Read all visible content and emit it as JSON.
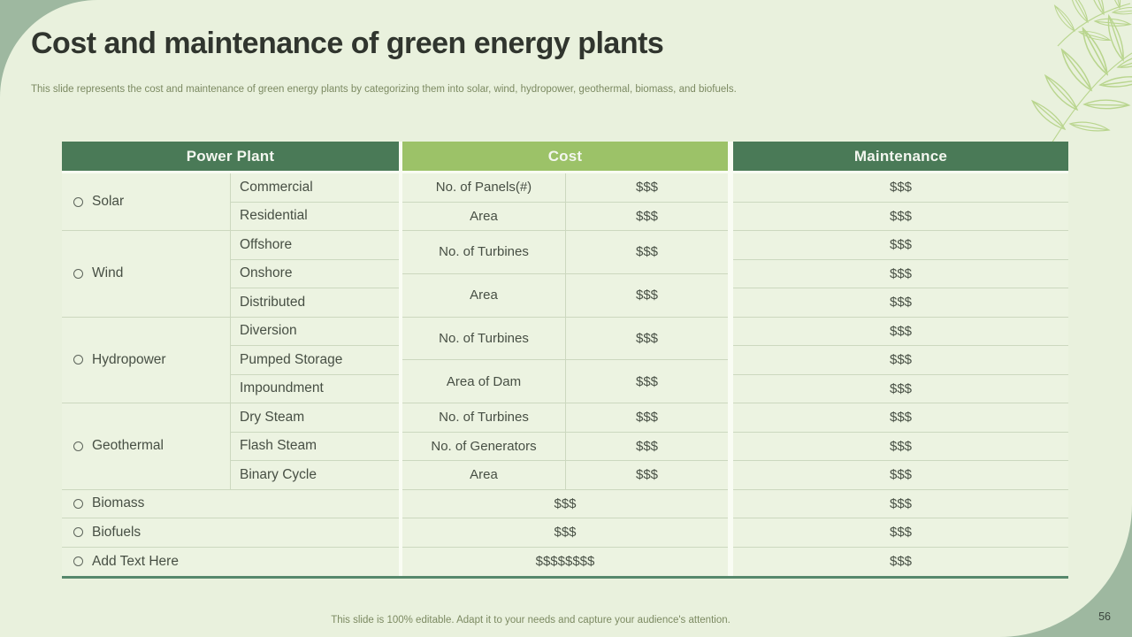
{
  "title": "Cost and maintenance of green energy plants",
  "subtitle": "This slide represents the cost and maintenance of green energy plants by categorizing them into solar, wind, hydropower, geothermal, biomass, and biofuels.",
  "footer_note": "This slide is 100% editable. Adapt it to your needs and capture your audience's attention.",
  "page_number": "56",
  "colors": {
    "sage_corner": "#9eb8a0",
    "slide_background": "#e9f1dd",
    "header_dark_green": "#4a7a57",
    "header_light_green": "#9cc268",
    "cell_background": "#ecf3e1",
    "cell_divider": "#ccd8bf",
    "group_gap": "#f9fcf3",
    "table_bottom_border": "#56886c",
    "title_text": "#30352e",
    "muted_olive_text": "#7c8a62",
    "cell_text": "#474f44",
    "leaf_stroke": "#b9d58e",
    "page_number_text": "#3c463e"
  },
  "table": {
    "headers": {
      "power_plant": "Power Plant",
      "cost": "Cost",
      "maintenance": "Maintenance"
    },
    "sections": [
      {
        "category": "Solar",
        "subs": [
          "Commercial",
          "Residential"
        ],
        "cost": [
          {
            "metric": "No. of Panels(#)",
            "value": "$$$",
            "span": 2
          },
          {
            "metric": "Area",
            "value": "$$$",
            "span": 2
          }
        ],
        "maintenance": [
          "$$$",
          "$$$"
        ]
      },
      {
        "category": "Wind",
        "subs": [
          "Offshore",
          "Onshore",
          "Distributed"
        ],
        "cost": [
          {
            "metric": "No. of Turbines",
            "value": "$$$",
            "span": 3
          },
          {
            "metric": "Area",
            "value": "$$$",
            "span": 3
          }
        ],
        "maintenance": [
          "$$$",
          "$$$",
          "$$$"
        ]
      },
      {
        "category": "Hydropower",
        "subs": [
          "Diversion",
          "Pumped Storage",
          "Impoundment"
        ],
        "cost": [
          {
            "metric": "No. of Turbines",
            "value": "$$$",
            "span": 3
          },
          {
            "metric": "Area of Dam",
            "value": "$$$",
            "span": 3
          }
        ],
        "maintenance": [
          "$$$",
          "$$$",
          "$$$"
        ]
      },
      {
        "category": "Geothermal",
        "subs": [
          "Dry Steam",
          "Flash Steam",
          "Binary Cycle"
        ],
        "cost": [
          {
            "metric": "No. of Turbines",
            "value": "$$$",
            "span": 2
          },
          {
            "metric": "No. of Generators",
            "value": "$$$",
            "span": 2
          },
          {
            "metric": "Area",
            "value": "$$$",
            "span": 2
          }
        ],
        "maintenance": [
          "$$$",
          "$$$",
          "$$$"
        ]
      },
      {
        "category": "Biomass",
        "merged_cost": "$$$",
        "maintenance": [
          "$$$"
        ]
      },
      {
        "category": "Biofuels",
        "merged_cost": "$$$",
        "maintenance": [
          "$$$"
        ]
      },
      {
        "category": "Add Text Here",
        "merged_cost": "$$$$$$$$",
        "maintenance": [
          "$$$"
        ]
      }
    ]
  }
}
